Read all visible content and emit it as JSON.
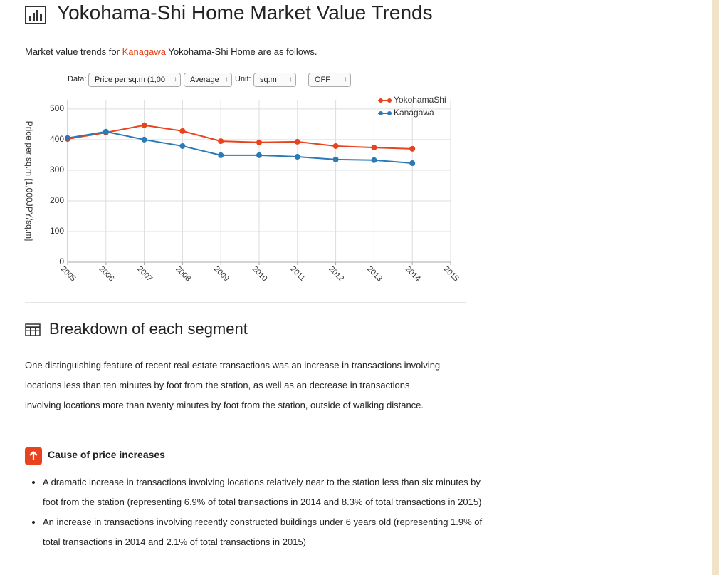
{
  "header": {
    "title": "Yokohama-Shi Home Market Value Trends"
  },
  "intro": {
    "before": "Market value trends for ",
    "highlight": "Kanagawa",
    "after": " Yokohama-Shi Home are as follows."
  },
  "controls": {
    "data_label": "Data:",
    "data_value": "Price per sq.m (1,00",
    "stat_value": "Average",
    "unit_label": "Unit:",
    "unit_value": "sq.m",
    "toggle_value": "OFF"
  },
  "chart_data": {
    "type": "line",
    "y_label": "Price per sq.m [1,000JPY/sq.m]",
    "x": [
      2005,
      2006,
      2007,
      2008,
      2009,
      2010,
      2011,
      2012,
      2013,
      2014
    ],
    "xlim": [
      2005,
      2015
    ],
    "xticks": [
      2005,
      2006,
      2007,
      2008,
      2009,
      2010,
      2011,
      2012,
      2013,
      2014,
      2015
    ],
    "ylim": [
      0,
      530
    ],
    "yticks": [
      0,
      100,
      200,
      300,
      400,
      500
    ],
    "grid": true,
    "legend": "top-right",
    "series": [
      {
        "name": "YokohamaShi",
        "color": "#e8431c",
        "values": [
          402,
          423,
          447,
          428,
          395,
          391,
          393,
          379,
          374,
          370
        ]
      },
      {
        "name": "Kanagawa",
        "color": "#2a7ab8",
        "values": [
          405,
          426,
          400,
          379,
          349,
          349,
          344,
          335,
          333,
          323
        ]
      }
    ]
  },
  "section": {
    "title": "Breakdown of each segment",
    "paragraph": "One distinguishing feature of recent real-estate transactions was an increase in transactions involving locations less than ten minutes by foot from the station, as well as an decrease in transactions involving locations more than twenty minutes by foot from the station, outside of walking distance.",
    "cause_title": "Cause of price increases",
    "bullets": [
      "A dramatic increase in transactions involving locations relatively near to the station less than six minutes by foot from the station (representing 6.9% of total transactions in 2014 and 8.3% of total transactions in 2015)",
      "An increase in transactions involving recently constructed buildings under 6 years old (representing 1.9% of total transactions in 2014 and 2.1% of total transactions in 2015)"
    ]
  }
}
